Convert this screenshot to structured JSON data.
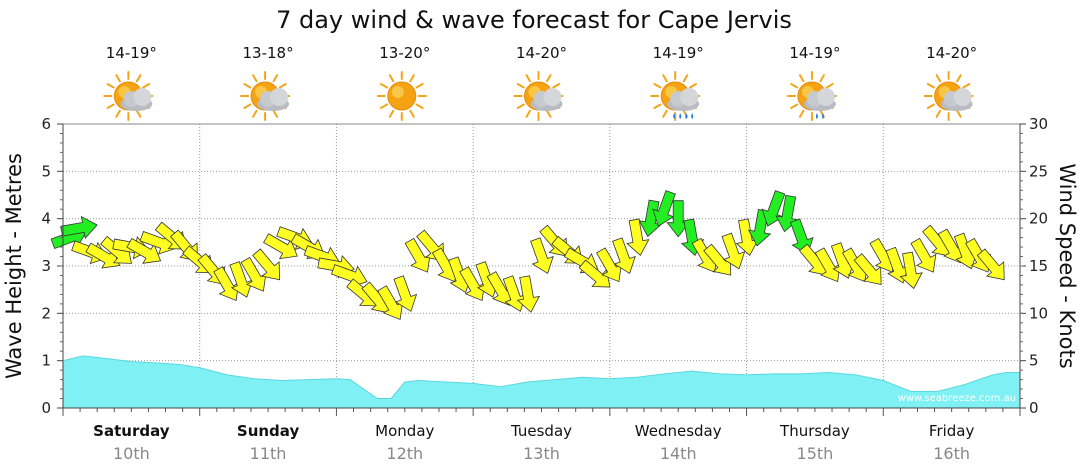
{
  "chart_data": {
    "type": "line",
    "title": "7 day wind & wave forecast for Cape Jervis",
    "y_left_label": "Wave Height - Metres",
    "y_right_label": "Wind Speed - Knots",
    "y_left_range": [
      0,
      6
    ],
    "y_left_ticks": [
      "0",
      "1",
      "2",
      "3",
      "4",
      "5",
      "6"
    ],
    "y_right_range": [
      0,
      30
    ],
    "y_right_ticks": [
      "0",
      "5",
      "10",
      "15",
      "20",
      "25",
      "30"
    ],
    "grid": true,
    "watermark": "www.seabreeze.com.au",
    "days": [
      {
        "day": "Saturday",
        "date": "10th",
        "temp": "14-19°",
        "weather": "partly-cloudy",
        "bold": true
      },
      {
        "day": "Sunday",
        "date": "11th",
        "temp": "13-18°",
        "weather": "partly-cloudy",
        "bold": true
      },
      {
        "day": "Monday",
        "date": "12th",
        "temp": "13-20°",
        "weather": "sunny",
        "bold": false
      },
      {
        "day": "Tuesday",
        "date": "13th",
        "temp": "14-20°",
        "weather": "partly-cloudy",
        "bold": false
      },
      {
        "day": "Wednesday",
        "date": "14th",
        "temp": "14-19°",
        "weather": "rain",
        "bold": false
      },
      {
        "day": "Thursday",
        "date": "15th",
        "temp": "14-19°",
        "weather": "showers",
        "bold": false
      },
      {
        "day": "Friday",
        "date": "16th",
        "temp": "14-20°",
        "weather": "partly-cloudy",
        "bold": false
      }
    ],
    "wave_series": {
      "name": "Wave Height",
      "color": "#7ff0f4",
      "x_day": [
        0,
        0.15,
        0.3,
        0.5,
        0.7,
        0.85,
        1.0,
        1.2,
        1.4,
        1.6,
        1.8,
        2.0,
        2.1,
        2.2,
        2.3,
        2.4,
        2.5,
        2.6,
        2.8,
        3.0,
        3.2,
        3.4,
        3.6,
        3.8,
        4.0,
        4.2,
        4.4,
        4.6,
        4.8,
        5.0,
        5.2,
        5.4,
        5.6,
        5.8,
        6.0,
        6.2,
        6.4,
        6.6,
        6.8,
        6.9
      ],
      "values": [
        1.0,
        1.1,
        1.05,
        0.98,
        0.95,
        0.92,
        0.85,
        0.7,
        0.62,
        0.58,
        0.6,
        0.62,
        0.6,
        0.4,
        0.2,
        0.2,
        0.55,
        0.58,
        0.55,
        0.52,
        0.45,
        0.55,
        0.6,
        0.65,
        0.62,
        0.65,
        0.72,
        0.78,
        0.72,
        0.7,
        0.72,
        0.72,
        0.75,
        0.7,
        0.58,
        0.35,
        0.35,
        0.5,
        0.7,
        0.75
      ]
    },
    "wind_series": {
      "name": "Wind Speed",
      "unit": "knots",
      "colors": {
        "light": "#ffff22",
        "strong": "#22ee22"
      },
      "x_day": [
        0.05,
        0.12,
        0.2,
        0.3,
        0.4,
        0.5,
        0.6,
        0.7,
        0.8,
        0.9,
        1.0,
        1.1,
        1.2,
        1.3,
        1.4,
        1.5,
        1.6,
        1.7,
        1.8,
        1.9,
        2.0,
        2.1,
        2.2,
        2.3,
        2.4,
        2.5,
        2.6,
        2.7,
        2.8,
        2.9,
        3.0,
        3.1,
        3.2,
        3.3,
        3.4,
        3.5,
        3.6,
        3.7,
        3.8,
        3.9,
        4.0,
        4.1,
        4.2,
        4.3,
        4.4,
        4.5,
        4.6,
        4.7,
        4.8,
        4.9,
        5.0,
        5.1,
        5.2,
        5.3,
        5.4,
        5.5,
        5.6,
        5.7,
        5.8,
        5.9,
        6.0,
        6.1,
        6.2,
        6.3,
        6.4,
        6.5,
        6.6,
        6.7,
        6.8
      ],
      "values": [
        18,
        19,
        16.5,
        16,
        16.5,
        17,
        16.5,
        17.5,
        18,
        17,
        15.5,
        14.5,
        13,
        13.5,
        14,
        15,
        17,
        18,
        17,
        16,
        15,
        14,
        12,
        11.5,
        11,
        12,
        16,
        17,
        15,
        14,
        13,
        13.5,
        12.5,
        12,
        12,
        16,
        17.5,
        16.5,
        15.5,
        14,
        15,
        16,
        18,
        20,
        21,
        20,
        18,
        16,
        15.5,
        16.5,
        18,
        19,
        21,
        20.5,
        18,
        15.5,
        15,
        15.5,
        15,
        14.5,
        16,
        15,
        14.5,
        16,
        17.5,
        17,
        16.5,
        16,
        15
      ],
      "directions_deg": [
        70,
        80,
        110,
        120,
        130,
        100,
        120,
        110,
        130,
        140,
        130,
        140,
        150,
        160,
        150,
        140,
        120,
        110,
        120,
        110,
        100,
        110,
        130,
        140,
        150,
        160,
        150,
        140,
        150,
        160,
        150,
        160,
        150,
        160,
        170,
        160,
        140,
        130,
        120,
        130,
        150,
        160,
        170,
        190,
        200,
        180,
        170,
        150,
        140,
        160,
        170,
        190,
        200,
        190,
        160,
        140,
        150,
        160,
        150,
        140,
        150,
        160,
        170,
        150,
        140,
        150,
        160,
        150,
        140
      ],
      "strong": [
        true,
        true,
        false,
        false,
        false,
        false,
        false,
        false,
        false,
        false,
        false,
        false,
        false,
        false,
        false,
        false,
        false,
        false,
        false,
        false,
        false,
        false,
        false,
        false,
        false,
        false,
        false,
        false,
        false,
        false,
        false,
        false,
        false,
        false,
        false,
        false,
        false,
        false,
        false,
        false,
        false,
        false,
        false,
        true,
        true,
        true,
        true,
        false,
        false,
        false,
        false,
        true,
        true,
        true,
        true,
        false,
        false,
        false,
        false,
        false,
        false,
        false,
        false,
        false,
        false,
        false,
        false,
        false,
        false
      ]
    }
  }
}
